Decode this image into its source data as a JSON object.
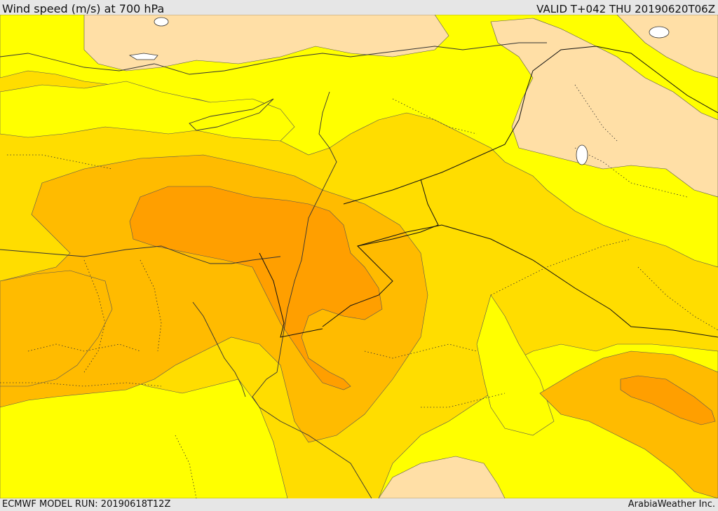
{
  "header": {
    "title": "Wind speed (m/s) at 700 hPa",
    "valid": "VALID T+042 THU  20190620T06Z"
  },
  "footer": {
    "model_run": "ECMWF MODEL RUN: 20190618T12Z",
    "credit": "ArabiaWeather Inc."
  },
  "colors": {
    "lightest": "#ffdfa6",
    "light": "#ffff00",
    "medium": "#ffdd00",
    "strong": "#ffbb00",
    "stronger": "#ff9f00",
    "land_outline": "#333333",
    "border": "#111111"
  }
}
